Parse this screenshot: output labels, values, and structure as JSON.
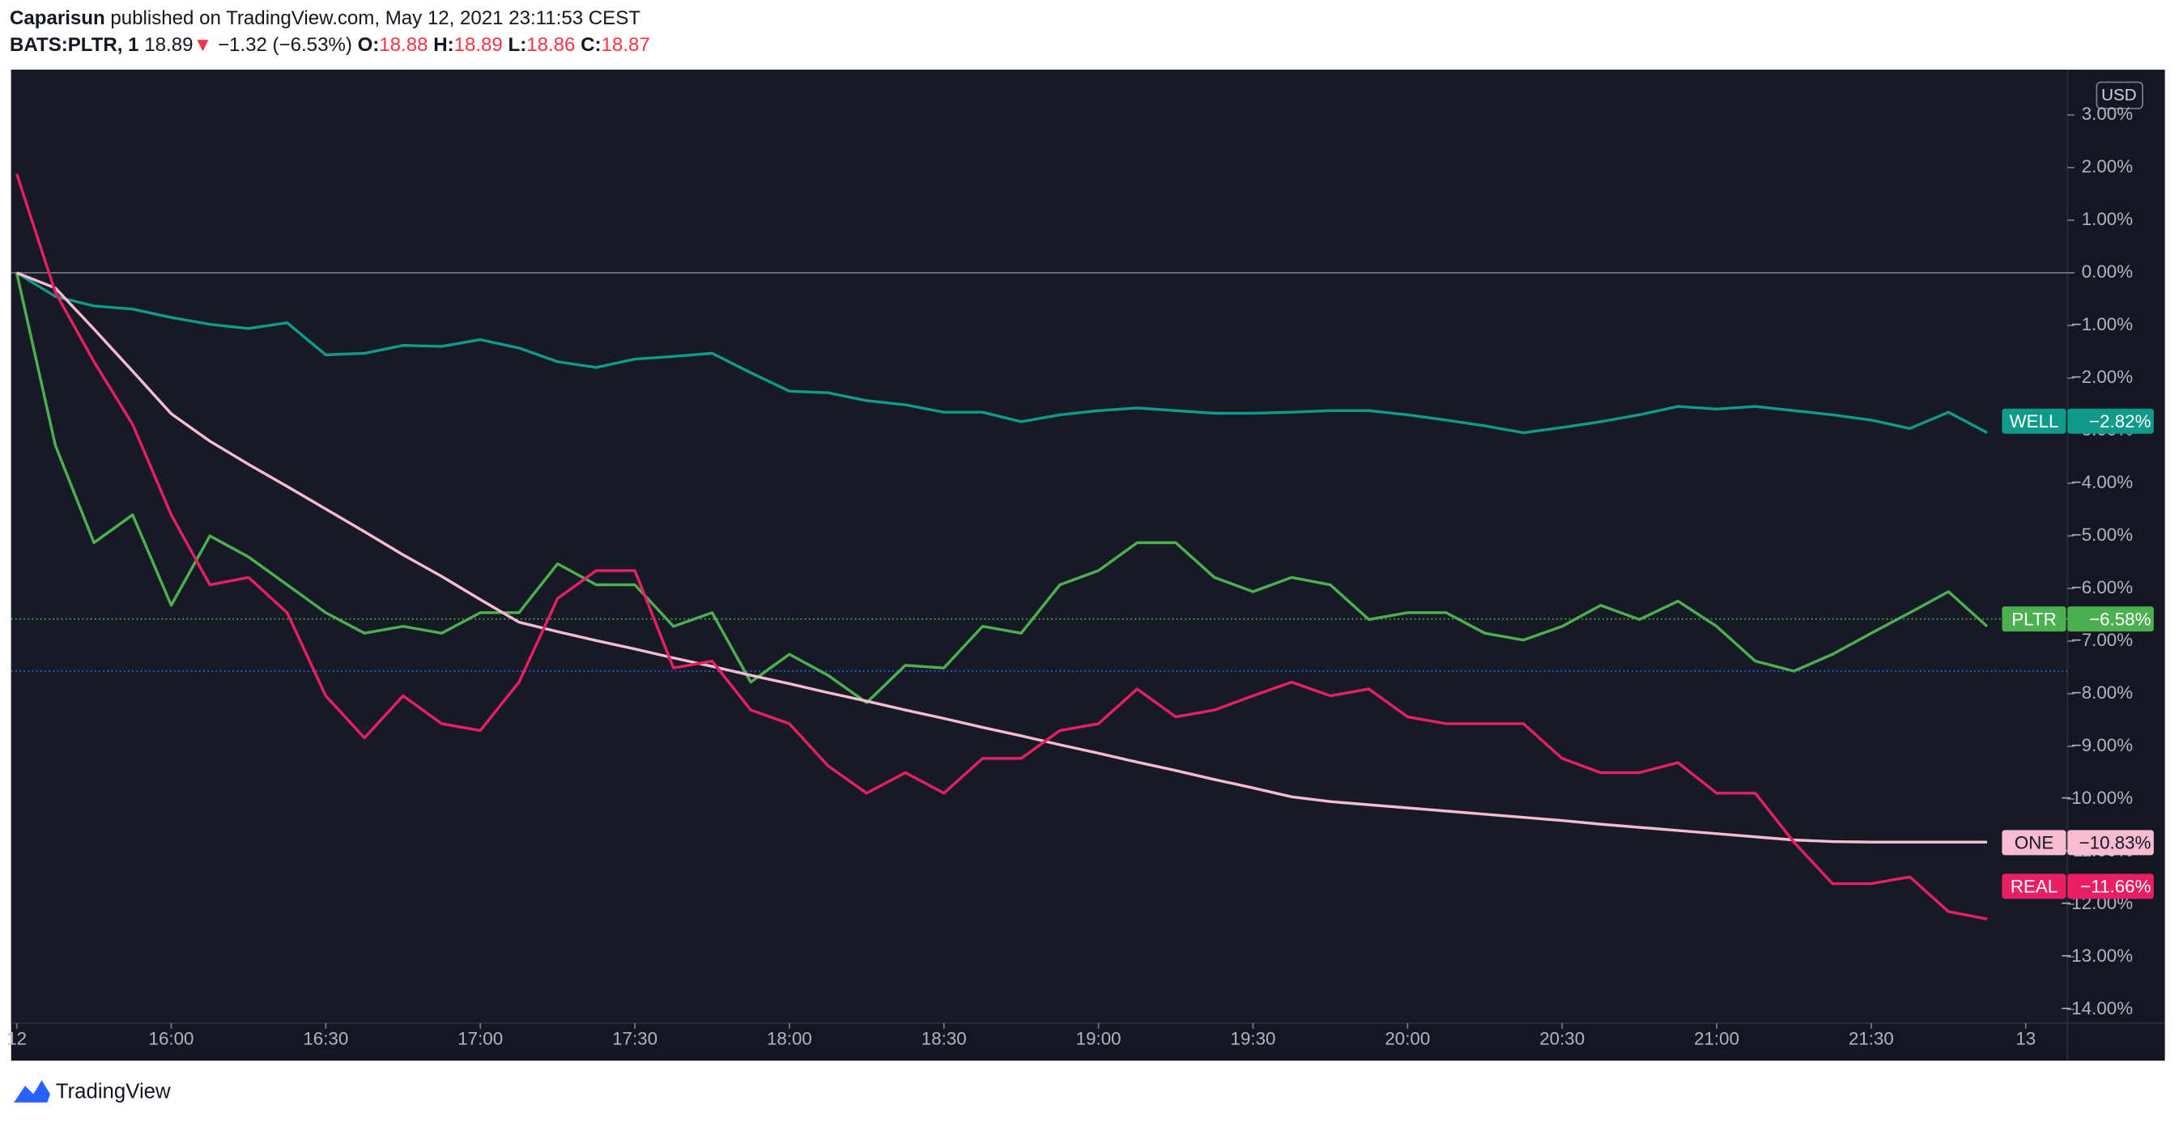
{
  "header": {
    "author": "Caparisun",
    "published": "published on TradingView.com, May 12, 2021 23:11:53 CEST",
    "symbol": "BATS:PLTR, 1",
    "price": "18.89",
    "arrow": "▼",
    "change": "−1.32 (−6.53%)",
    "ohlc": [
      {
        "label": "O:",
        "value": "18.88"
      },
      {
        "label": "H:",
        "value": "18.89"
      },
      {
        "label": "L:",
        "value": "18.86"
      },
      {
        "label": "C:",
        "value": "18.87"
      }
    ]
  },
  "footer": "TradingView",
  "chart_data": {
    "type": "line",
    "currency": "USD",
    "grid": false,
    "baseline": 0,
    "xlim": [
      15.5,
      22.135
    ],
    "ylim": [
      -14.26,
      3.86
    ],
    "xticks": [
      {
        "value": 15.5,
        "label": "12"
      },
      {
        "value": 16,
        "label": "16:00"
      },
      {
        "value": 16.5,
        "label": "16:30"
      },
      {
        "value": 17,
        "label": "17:00"
      },
      {
        "value": 17.5,
        "label": "17:30"
      },
      {
        "value": 18,
        "label": "18:00"
      },
      {
        "value": 18.5,
        "label": "18:30"
      },
      {
        "value": 19,
        "label": "19:00"
      },
      {
        "value": 19.5,
        "label": "19:30"
      },
      {
        "value": 20,
        "label": "20:00"
      },
      {
        "value": 20.5,
        "label": "20:30"
      },
      {
        "value": 21,
        "label": "21:00"
      },
      {
        "value": 21.5,
        "label": "21:30"
      },
      {
        "value": 22,
        "label": "13"
      }
    ],
    "yticks": [
      {
        "value": 3,
        "label": "3.00%"
      },
      {
        "value": 2,
        "label": "2.00%"
      },
      {
        "value": 1,
        "label": "1.00%"
      },
      {
        "value": 0,
        "label": "0.00%"
      },
      {
        "value": -1,
        "label": "−1.00%"
      },
      {
        "value": -2,
        "label": "−2.00%"
      },
      {
        "value": -3,
        "label": "−3.00%"
      },
      {
        "value": -4,
        "label": "−4.00%"
      },
      {
        "value": -5,
        "label": "−5.00%"
      },
      {
        "value": -6,
        "label": "−6.00%"
      },
      {
        "value": -7,
        "label": "−7.00%"
      },
      {
        "value": -8,
        "label": "−8.00%"
      },
      {
        "value": -9,
        "label": "−9.00%"
      },
      {
        "value": -10,
        "label": "−10.00%"
      },
      {
        "value": -11,
        "label": "−11.00%"
      },
      {
        "value": -12,
        "label": "−12.00%"
      },
      {
        "value": -13,
        "label": "−13.00%"
      },
      {
        "value": -14,
        "label": "−14.00%"
      }
    ],
    "price_lines": [
      {
        "value": -6.58,
        "color": "#4caf50"
      },
      {
        "value": -7.57,
        "color": "#2962ff"
      }
    ],
    "x": [
      15.5,
      15.625,
      15.75,
      15.875,
      16,
      16.125,
      16.25,
      16.375,
      16.5,
      16.625,
      16.75,
      16.875,
      17,
      17.125,
      17.25,
      17.375,
      17.5,
      17.625,
      17.75,
      17.875,
      18,
      18.125,
      18.25,
      18.375,
      18.5,
      18.625,
      18.75,
      18.875,
      19,
      19.125,
      19.25,
      19.375,
      19.5,
      19.625,
      19.75,
      19.875,
      20,
      20.125,
      20.25,
      20.375,
      20.5,
      20.625,
      20.75,
      20.875,
      21,
      21.125,
      21.25,
      21.375,
      21.5,
      21.625,
      21.75,
      21.875
    ],
    "series": [
      {
        "name": "WELL",
        "color": "#0f9a8a",
        "text_color": "#ffffff",
        "badge": {
          "value": -2.82,
          "label": "−2.82%"
        },
        "values": [
          0,
          -0.45,
          -0.63,
          -0.69,
          -0.85,
          -0.98,
          -1.06,
          -0.95,
          -1.56,
          -1.53,
          -1.38,
          -1.4,
          -1.27,
          -1.43,
          -1.69,
          -1.8,
          -1.64,
          -1.59,
          -1.53,
          -1.9,
          -2.25,
          -2.28,
          -2.43,
          -2.51,
          -2.65,
          -2.65,
          -2.83,
          -2.7,
          -2.62,
          -2.57,
          -2.62,
          -2.67,
          -2.67,
          -2.65,
          -2.62,
          -2.62,
          -2.7,
          -2.8,
          -2.91,
          -3.04,
          -2.94,
          -2.83,
          -2.7,
          -2.54,
          -2.59,
          -2.54,
          -2.62,
          -2.7,
          -2.8,
          -2.96,
          -2.65,
          -3.04
        ]
      },
      {
        "name": "PLTR",
        "color": "#4caf50",
        "text_color": "#ffffff",
        "badge": {
          "value": -6.58,
          "label": "−6.58%"
        },
        "values": [
          0,
          -3.28,
          -5.13,
          -4.6,
          -6.32,
          -5,
          -5.4,
          -5.93,
          -6.46,
          -6.85,
          -6.72,
          -6.85,
          -6.46,
          -6.46,
          -5.53,
          -5.93,
          -5.93,
          -6.72,
          -6.46,
          -7.78,
          -7.25,
          -7.65,
          -8.17,
          -7.46,
          -7.51,
          -6.72,
          -6.85,
          -5.93,
          -5.66,
          -5.13,
          -5.13,
          -5.79,
          -6.06,
          -5.79,
          -5.93,
          -6.59,
          -6.46,
          -6.46,
          -6.85,
          -6.98,
          -6.72,
          -6.32,
          -6.59,
          -6.24,
          -6.72,
          -7.38,
          -7.57,
          -7.25,
          -6.85,
          -6.46,
          -6.06,
          -6.72
        ]
      },
      {
        "name": "ONE",
        "color": "#f8bbd0",
        "text_color": "#131722",
        "badge": {
          "value": -10.83,
          "label": "−10.83%"
        },
        "values": [
          0,
          -0.29,
          -1.07,
          -1.87,
          -2.68,
          -3.2,
          -3.64,
          -4.06,
          -4.49,
          -4.92,
          -5.36,
          -5.77,
          -6.21,
          -6.64,
          -6.82,
          -6.99,
          -7.15,
          -7.32,
          -7.48,
          -7.65,
          -7.81,
          -7.98,
          -8.14,
          -8.31,
          -8.47,
          -8.64,
          -8.8,
          -8.97,
          -9.13,
          -9.3,
          -9.46,
          -9.63,
          -9.79,
          -9.96,
          -10.05,
          -10.11,
          -10.17,
          -10.23,
          -10.29,
          -10.35,
          -10.41,
          -10.48,
          -10.54,
          -10.6,
          -10.66,
          -10.72,
          -10.78,
          -10.81,
          -10.82,
          -10.82,
          -10.82,
          -10.82
        ]
      },
      {
        "name": "REAL",
        "color": "#e91e63",
        "text_color": "#ffffff",
        "badge": {
          "value": -11.66,
          "label": "−11.66%"
        },
        "values": [
          1.88,
          -0.37,
          -1.69,
          -2.88,
          -4.6,
          -5.93,
          -5.79,
          -6.46,
          -8.04,
          -8.84,
          -8.04,
          -8.57,
          -8.7,
          -7.78,
          -6.19,
          -5.66,
          -5.66,
          -7.51,
          -7.38,
          -8.31,
          -8.57,
          -9.37,
          -9.89,
          -9.5,
          -9.89,
          -9.23,
          -9.23,
          -8.7,
          -8.57,
          -7.91,
          -8.44,
          -8.31,
          -8.04,
          -7.78,
          -8.04,
          -7.91,
          -8.44,
          -8.57,
          -8.57,
          -8.57,
          -9.23,
          -9.5,
          -9.5,
          -9.31,
          -9.89,
          -9.89,
          -10.82,
          -11.61,
          -11.61,
          -11.48,
          -12.14,
          -12.28
        ]
      }
    ]
  }
}
